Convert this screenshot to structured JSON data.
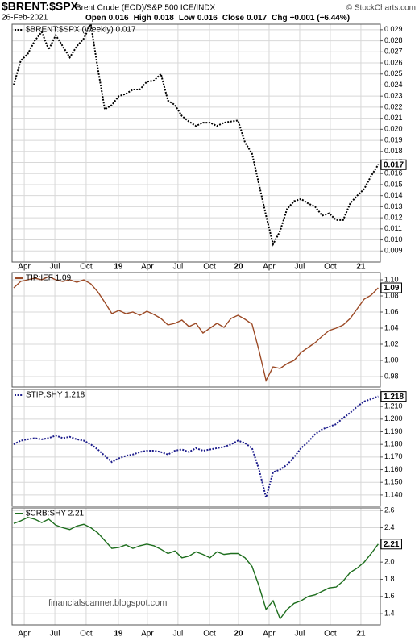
{
  "header": {
    "symbol": "$BRENT:$SPX",
    "description": "Brent Crude (EOD)/S&P 500 ICE/INDX",
    "credit": "© StockCharts.com",
    "date": "26-Feb-2021",
    "fields": [
      {
        "label": "Open",
        "value": "0.016"
      },
      {
        "label": "High",
        "value": "0.018"
      },
      {
        "label": "Low",
        "value": "0.016"
      },
      {
        "label": "Close",
        "value": "0.017"
      },
      {
        "label": "Chg",
        "value": "+0.001 (+6.44%)"
      }
    ]
  },
  "chart_data": [
    {
      "type": "line",
      "show_xtick_labels": true,
      "grid": true,
      "x": [
        0,
        3,
        6,
        9,
        12,
        15,
        18,
        21,
        24,
        27,
        30,
        33,
        36,
        39,
        42,
        45,
        48,
        51,
        54,
        57,
        60,
        63,
        66,
        69,
        72,
        75,
        78,
        81,
        84,
        87,
        90,
        93,
        96,
        99,
        102,
        105,
        108,
        111,
        114,
        117,
        120,
        123,
        126,
        129,
        132,
        135,
        138,
        141,
        144,
        147,
        150,
        153,
        156
      ],
      "xlim": [
        -0.7,
        156.9
      ],
      "xticks": [
        {
          "value": 4.5,
          "label": "Apr"
        },
        {
          "value": 17.6,
          "label": "Jul"
        },
        {
          "value": 31,
          "label": "Oct"
        },
        {
          "value": 44.8,
          "label": "19"
        },
        {
          "value": 57.2,
          "label": "Apr"
        },
        {
          "value": 70.3,
          "label": "Jul"
        },
        {
          "value": 83.8,
          "label": "Oct"
        },
        {
          "value": 96.2,
          "label": "20"
        },
        {
          "value": 109.3,
          "label": "Apr"
        },
        {
          "value": 122.4,
          "label": "Jul"
        },
        {
          "value": 135.5,
          "label": "Oct"
        },
        {
          "value": 148.6,
          "label": "21"
        }
      ],
      "ylim": [
        0.008,
        0.0295
      ],
      "yticks": [
        0.009,
        {
          "value": 0.01,
          "label": "0.010"
        },
        0.011,
        0.012,
        0.013,
        0.014,
        0.015,
        0.016,
        0.017,
        0.018,
        0.019,
        {
          "value": 0.02,
          "label": "0.020"
        },
        0.021,
        0.022,
        0.023,
        0.024,
        0.025,
        0.026,
        0.027,
        0.028,
        0.029
      ],
      "series": [
        {
          "name": "$BRENT:$SPX (Weekly) 0.017",
          "color": "#000000",
          "line_style": "dotted",
          "last_label": "0.017",
          "values": [
            0.024,
            0.0262,
            0.0268,
            0.028,
            0.0288,
            0.0272,
            0.0285,
            0.0275,
            0.0265,
            0.0275,
            0.0282,
            0.0295,
            0.0255,
            0.0218,
            0.0222,
            0.023,
            0.0232,
            0.0236,
            0.0236,
            0.0243,
            0.0244,
            0.025,
            0.0226,
            0.0222,
            0.0212,
            0.0207,
            0.0203,
            0.0206,
            0.0206,
            0.0203,
            0.0206,
            0.0207,
            0.0208,
            0.0188,
            0.0178,
            0.015,
            0.0122,
            0.0096,
            0.0108,
            0.0128,
            0.0135,
            0.0137,
            0.0133,
            0.013,
            0.0122,
            0.0124,
            0.0118,
            0.0118,
            0.0133,
            0.014,
            0.0146,
            0.0158,
            0.0168
          ]
        }
      ]
    },
    {
      "type": "line",
      "show_xtick_labels": false,
      "grid": true,
      "x": [
        0,
        3,
        6,
        9,
        12,
        15,
        18,
        21,
        24,
        27,
        30,
        33,
        36,
        39,
        42,
        45,
        48,
        51,
        54,
        57,
        60,
        63,
        66,
        69,
        72,
        75,
        78,
        81,
        84,
        87,
        90,
        93,
        96,
        99,
        102,
        105,
        108,
        111,
        114,
        117,
        120,
        123,
        126,
        129,
        132,
        135,
        138,
        141,
        144,
        147,
        150,
        153,
        156
      ],
      "xlim": [
        -0.7,
        156.9
      ],
      "xticks": [
        4.5,
        17.6,
        31,
        44.8,
        57.2,
        70.3,
        83.8,
        96.2,
        109.3,
        122.4,
        135.5,
        148.6
      ],
      "ylim": [
        0.967,
        1.109
      ],
      "yticks": [
        0.98,
        {
          "value": 1,
          "label": "1.00"
        },
        1.02,
        1.04,
        1.06,
        1.08,
        {
          "value": 1.1,
          "label": "1.10"
        }
      ],
      "series": [
        {
          "name": "TIP:IEF 1.09",
          "color": "#9c4a26",
          "line_style": "solid",
          "last_label": "1.09",
          "values": [
            1.09,
            1.098,
            1.1,
            1.102,
            1.1,
            1.104,
            1.1,
            1.098,
            1.1,
            1.097,
            1.1,
            1.095,
            1.085,
            1.072,
            1.058,
            1.062,
            1.058,
            1.06,
            1.056,
            1.061,
            1.057,
            1.052,
            1.044,
            1.046,
            1.05,
            1.042,
            1.046,
            1.034,
            1.04,
            1.046,
            1.041,
            1.052,
            1.056,
            1.051,
            1.045,
            1.012,
            0.975,
            0.992,
            0.99,
            0.996,
            1.0,
            1.01,
            1.016,
            1.022,
            1.03,
            1.037,
            1.04,
            1.044,
            1.052,
            1.064,
            1.076,
            1.081,
            1.09
          ]
        }
      ]
    },
    {
      "type": "line",
      "show_xtick_labels": false,
      "grid": true,
      "x": [
        0,
        3,
        6,
        9,
        12,
        15,
        18,
        21,
        24,
        27,
        30,
        33,
        36,
        39,
        42,
        45,
        48,
        51,
        54,
        57,
        60,
        63,
        66,
        69,
        72,
        75,
        78,
        81,
        84,
        87,
        90,
        93,
        96,
        99,
        102,
        105,
        108,
        111,
        114,
        117,
        120,
        123,
        126,
        129,
        132,
        135,
        138,
        141,
        144,
        147,
        150,
        153,
        156
      ],
      "xlim": [
        -0.7,
        156.9
      ],
      "xticks": [
        4.5,
        17.6,
        31,
        44.8,
        57.2,
        70.3,
        83.8,
        96.2,
        109.3,
        122.4,
        135.5,
        148.6
      ],
      "ylim": [
        1.131,
        1.2235
      ],
      "yticks": [
        {
          "value": 1.14,
          "label": "1.140"
        },
        {
          "value": 1.15,
          "label": "1.150"
        },
        {
          "value": 1.16,
          "label": "1.160"
        },
        {
          "value": 1.17,
          "label": "1.170"
        },
        {
          "value": 1.18,
          "label": "1.180"
        },
        {
          "value": 1.19,
          "label": "1.190"
        },
        {
          "value": 1.2,
          "label": "1.200"
        },
        {
          "value": 1.21,
          "label": "1.210"
        }
      ],
      "series": [
        {
          "name": "STIP:SHY 1.218",
          "color": "#1c1c8c",
          "line_style": "dotted",
          "last_label": "1.218",
          "values": [
            1.18,
            1.183,
            1.184,
            1.185,
            1.184,
            1.185,
            1.187,
            1.185,
            1.186,
            1.184,
            1.183,
            1.18,
            1.176,
            1.171,
            1.166,
            1.169,
            1.171,
            1.172,
            1.174,
            1.175,
            1.175,
            1.174,
            1.172,
            1.175,
            1.176,
            1.174,
            1.177,
            1.175,
            1.176,
            1.177,
            1.178,
            1.18,
            1.183,
            1.181,
            1.177,
            1.16,
            1.138,
            1.158,
            1.16,
            1.164,
            1.17,
            1.177,
            1.182,
            1.188,
            1.192,
            1.194,
            1.196,
            1.201,
            1.205,
            1.21,
            1.214,
            1.216,
            1.218
          ]
        }
      ]
    },
    {
      "type": "line",
      "show_xtick_labels": true,
      "grid": true,
      "watermark": "financialscanner.blogspot.com",
      "x": [
        0,
        3,
        6,
        9,
        12,
        15,
        18,
        21,
        24,
        27,
        30,
        33,
        36,
        39,
        42,
        45,
        48,
        51,
        54,
        57,
        60,
        63,
        66,
        69,
        72,
        75,
        78,
        81,
        84,
        87,
        90,
        93,
        96,
        99,
        102,
        105,
        108,
        111,
        114,
        117,
        120,
        123,
        126,
        129,
        132,
        135,
        138,
        141,
        144,
        147,
        150,
        153,
        156
      ],
      "xlim": [
        -0.7,
        156.9
      ],
      "xticks": [
        {
          "value": 4.5,
          "label": "Apr"
        },
        {
          "value": 17.6,
          "label": "Jul"
        },
        {
          "value": 31,
          "label": "Oct"
        },
        {
          "value": 44.8,
          "label": "19"
        },
        {
          "value": 57.2,
          "label": "Apr"
        },
        {
          "value": 70.3,
          "label": "Jul"
        },
        {
          "value": 83.8,
          "label": "Oct"
        },
        {
          "value": 96.2,
          "label": "20"
        },
        {
          "value": 109.3,
          "label": "Apr"
        },
        {
          "value": 122.4,
          "label": "Jul"
        },
        {
          "value": 135.5,
          "label": "Oct"
        },
        {
          "value": 148.6,
          "label": "21"
        }
      ],
      "ylim": [
        1.27,
        2.63
      ],
      "yticks": [
        1.4,
        1.6,
        1.8,
        {
          "value": 2,
          "label": "2.0"
        },
        2.2,
        2.4,
        2.6
      ],
      "series": [
        {
          "name": "$CRB:SHY 2.21",
          "color": "#1e6e1e",
          "line_style": "solid",
          "last_label": "2.21",
          "values": [
            2.45,
            2.48,
            2.52,
            2.5,
            2.46,
            2.5,
            2.43,
            2.4,
            2.38,
            2.42,
            2.44,
            2.4,
            2.34,
            2.25,
            2.16,
            2.17,
            2.2,
            2.16,
            2.19,
            2.21,
            2.19,
            2.15,
            2.1,
            2.13,
            2.05,
            2.07,
            2.12,
            2.09,
            2.05,
            2.12,
            2.09,
            2.1,
            2.1,
            2.05,
            1.95,
            1.72,
            1.45,
            1.55,
            1.34,
            1.45,
            1.52,
            1.55,
            1.6,
            1.62,
            1.66,
            1.7,
            1.71,
            1.78,
            1.88,
            1.93,
            2.0,
            2.1,
            2.21
          ]
        }
      ]
    }
  ]
}
